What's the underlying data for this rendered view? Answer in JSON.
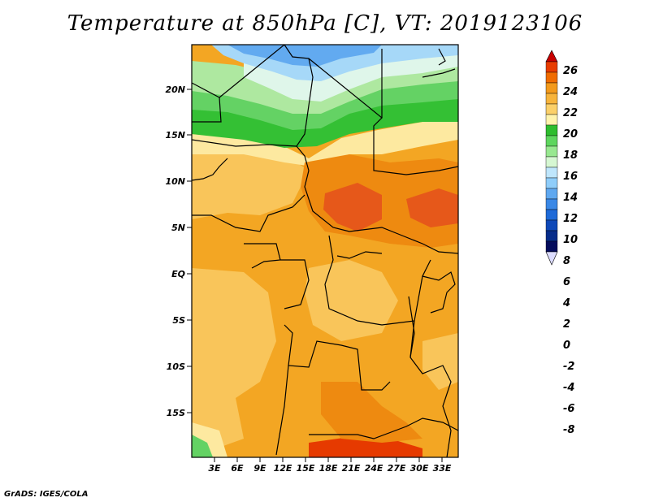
{
  "title": "Temperature at 850hPa [C], VT: 2019123106",
  "credit": "GrADS: IGES/COLA",
  "axes": {
    "lat_ticks": [
      "20N",
      "15N",
      "10N",
      "5N",
      "EQ",
      "5S",
      "10S",
      "15S"
    ],
    "lon_ticks": [
      "3E",
      "6E",
      "9E",
      "12E",
      "15E",
      "18E",
      "21E",
      "24E",
      "27E",
      "30E",
      "33E"
    ]
  },
  "colorbar": {
    "levels": [
      "26",
      "24",
      "22",
      "20",
      "18",
      "16",
      "14",
      "12",
      "10",
      "8",
      "6",
      "4",
      "2",
      "0",
      "-2",
      "-4",
      "-6",
      "-8"
    ],
    "colors": [
      "#c80000",
      "#e83c00",
      "#f06c00",
      "#f39a1c",
      "#f7b43c",
      "#fbd06a",
      "#fff3ac",
      "#2ebd2e",
      "#5ed65e",
      "#98e890",
      "#d6f7d2",
      "#bfe6fc",
      "#8fcdfa",
      "#5fa8f0",
      "#3a88e6",
      "#1e6ad8",
      "#0e48b8",
      "#062c8a",
      "#040c5c",
      "#dcdcff"
    ]
  },
  "map": {
    "colors": {
      "blue_light": "#a6d8f8",
      "blue_mid": "#62aaf0",
      "pale": "#dff6ea",
      "green_light": "#aee8a0",
      "green_mid": "#64d264",
      "green_dark": "#34c034",
      "yellow": "#fde9a0",
      "light_orange": "#f9c55a",
      "orange": "#f3a623",
      "dark_orange": "#ee8a10",
      "red_orange": "#e6581a",
      "red": "#e63a00"
    }
  }
}
